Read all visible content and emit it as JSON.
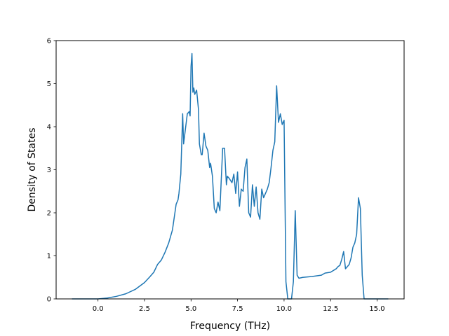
{
  "chart_data": {
    "type": "line",
    "title": "",
    "xlabel": "Frequency (THz)",
    "ylabel": "Density of States",
    "xlim": [
      -2.25,
      16.45
    ],
    "ylim": [
      0,
      6
    ],
    "x_ticks": [
      0.0,
      2.5,
      5.0,
      7.5,
      10.0,
      12.5,
      15.0
    ],
    "x_tick_labels": [
      "0.0",
      "2.5",
      "5.0",
      "7.5",
      "10.0",
      "12.5",
      "15.0"
    ],
    "y_ticks": [
      0,
      1,
      2,
      3,
      4,
      5,
      6
    ],
    "y_tick_labels": [
      "0",
      "1",
      "2",
      "3",
      "4",
      "5",
      "6"
    ],
    "grid": false,
    "color": "#1f77b4",
    "series": [
      {
        "x": [
          -1.4,
          -0.5,
          0.0,
          0.5,
          1.0,
          1.5,
          2.0,
          2.5,
          2.8,
          3.0,
          3.2,
          3.4,
          3.6,
          3.8,
          4.0,
          4.1,
          4.2,
          4.3,
          4.35,
          4.45,
          4.55,
          4.6,
          4.7,
          4.8,
          4.9,
          4.95,
          5.0,
          5.05,
          5.1,
          5.15,
          5.2,
          5.3,
          5.4,
          5.45,
          5.55,
          5.6,
          5.7,
          5.8,
          5.9,
          6.0,
          6.05,
          6.15,
          6.25,
          6.35,
          6.45,
          6.55,
          6.7,
          6.8,
          6.9,
          6.95,
          7.05,
          7.2,
          7.3,
          7.4,
          7.5,
          7.6,
          7.7,
          7.8,
          7.9,
          8.0,
          8.1,
          8.2,
          8.3,
          8.4,
          8.5,
          8.6,
          8.7,
          8.8,
          8.9,
          9.0,
          9.1,
          9.2,
          9.3,
          9.4,
          9.5,
          9.6,
          9.7,
          9.8,
          9.9,
          10.0,
          10.1,
          10.2,
          10.4,
          10.5,
          10.6,
          10.7,
          10.8,
          11.0,
          11.5,
          12.0,
          12.2,
          12.5,
          12.8,
          12.9,
          13.0,
          13.1,
          13.2,
          13.3,
          13.4,
          13.5,
          13.6,
          13.7,
          13.8,
          13.9,
          14.0,
          14.1,
          14.2,
          14.3,
          15.0,
          15.6
        ],
        "y": [
          0.0,
          0.0,
          0.0,
          0.02,
          0.06,
          0.12,
          0.22,
          0.38,
          0.52,
          0.62,
          0.8,
          0.9,
          1.08,
          1.3,
          1.6,
          1.9,
          2.2,
          2.3,
          2.45,
          2.9,
          4.3,
          3.6,
          3.95,
          4.3,
          4.35,
          4.25,
          5.4,
          5.7,
          4.8,
          4.9,
          4.75,
          4.85,
          4.4,
          3.6,
          3.35,
          3.35,
          3.85,
          3.55,
          3.45,
          3.05,
          3.15,
          2.85,
          2.1,
          2.0,
          2.25,
          2.05,
          3.5,
          3.5,
          2.65,
          2.85,
          2.8,
          2.7,
          2.9,
          2.45,
          2.95,
          2.15,
          2.55,
          2.5,
          3.05,
          3.25,
          2.0,
          1.9,
          2.65,
          2.15,
          2.6,
          2.0,
          1.85,
          2.55,
          2.35,
          2.45,
          2.55,
          2.7,
          3.05,
          3.45,
          3.65,
          4.95,
          4.1,
          4.3,
          4.05,
          4.15,
          0.4,
          0.0,
          0.0,
          0.4,
          2.05,
          0.55,
          0.48,
          0.5,
          0.52,
          0.55,
          0.6,
          0.62,
          0.7,
          0.75,
          0.78,
          0.92,
          1.1,
          0.7,
          0.75,
          0.8,
          0.95,
          1.2,
          1.3,
          1.5,
          2.35,
          2.1,
          0.55,
          0.0,
          0.0,
          0.0
        ]
      }
    ]
  }
}
